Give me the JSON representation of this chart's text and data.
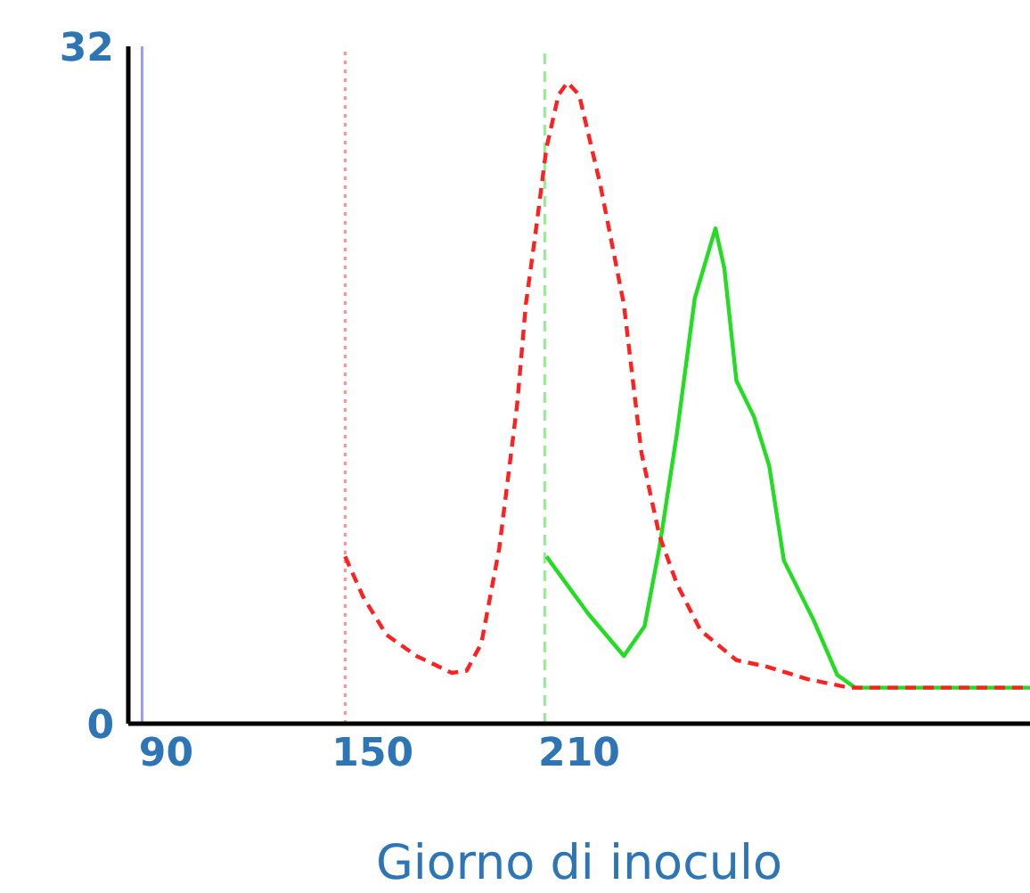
{
  "chart_data": {
    "type": "line",
    "xlabel": "Giorno di inoculo",
    "xlim": [
      79,
      341
    ],
    "xticks": [
      90,
      150,
      210
    ],
    "ylim": [
      0,
      32
    ],
    "yticks": [
      0,
      32
    ],
    "grid": false,
    "legend": false,
    "marker": "none",
    "series": [
      {
        "color": "#ff2020",
        "line_style": "dashed",
        "x": [
          142,
          147.2,
          154,
          162.7,
          173,
          177.3,
          181.6,
          186.8,
          192,
          194.5,
          197.1,
          200.5,
          204,
          206.6,
          210,
          216.1,
          223,
          228.1,
          233.3,
          238.4,
          245.3,
          255.7,
          264.4,
          276.4,
          288.5,
          341
        ],
        "values": [
          7.9,
          6.0,
          4.2,
          3.2,
          2.4,
          2.5,
          3.8,
          8.3,
          15.1,
          19.8,
          22.9,
          27.2,
          29.7,
          30.3,
          29.7,
          25.5,
          19.8,
          12.8,
          8.9,
          6.6,
          4.4,
          3,
          2.7,
          2.1,
          1.7,
          1.7
        ]
      },
      {
        "color": "#22dd22",
        "line_style": "solid",
        "x": [
          200.5,
          212.6,
          223,
          229,
          233.3,
          238.4,
          243.6,
          249.6,
          252.2,
          255.7,
          260.8,
          265.2,
          269.5,
          278.1,
          285,
          290.2,
          341
        ],
        "values": [
          7.9,
          5.2,
          3.2,
          4.6,
          8.3,
          13.7,
          20.1,
          23.4,
          21.5,
          16.2,
          14.5,
          12.2,
          7.7,
          4.9,
          2.3,
          1.7,
          1.7
        ]
      }
    ],
    "ref_lines": [
      {
        "axis": "x",
        "value": 83,
        "color": "#9999ff",
        "line_style": "solid"
      },
      {
        "axis": "x",
        "value": 142,
        "color": "#ff9090",
        "line_style": "dotted"
      },
      {
        "axis": "x",
        "value": 200,
        "color": "#90ee90",
        "line_style": "dashed"
      }
    ]
  }
}
